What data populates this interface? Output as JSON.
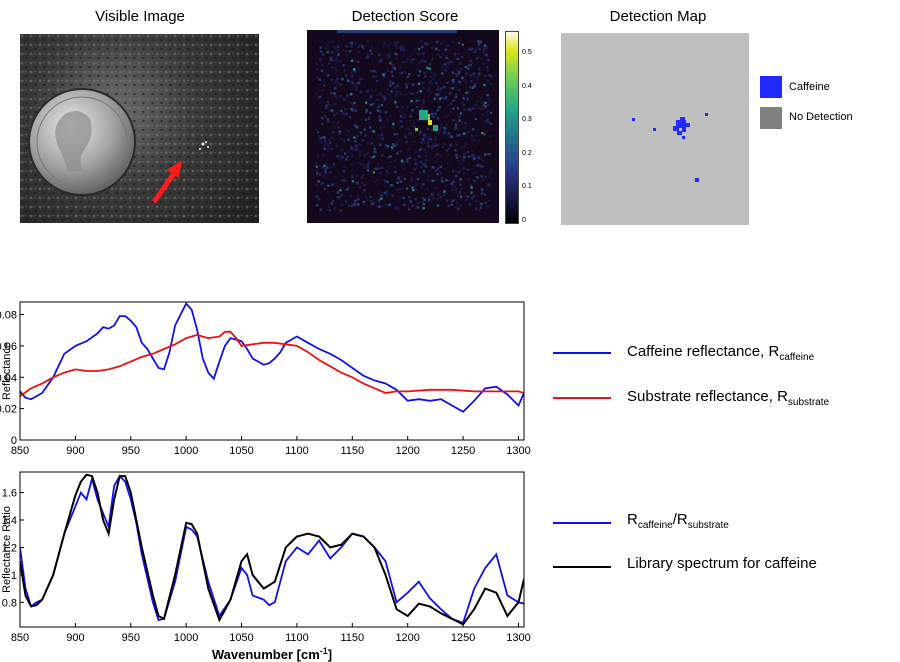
{
  "panels": {
    "visible_title": "Visible Image",
    "score_title": "Detection Score",
    "map_title": "Detection Map"
  },
  "score_colorbar": {
    "ticks": [
      "0.5",
      "0.4",
      "0.3",
      "0.2",
      "0.1",
      "0"
    ],
    "tick_values": [
      0.5,
      0.4,
      0.3,
      0.2,
      0.1,
      0
    ],
    "range": [
      0,
      0.57
    ]
  },
  "map_legend": {
    "caffeine_label": "Caffeine",
    "caffeine_color": "#1f2bff",
    "nodetect_label": "No Detection",
    "nodetect_color": "#808080"
  },
  "colors": {
    "caffeine": "#1010ee",
    "substrate": "#ee1010",
    "ratio": "#1010ee",
    "library": "#000000"
  },
  "chart_data": [
    {
      "type": "line",
      "ylabel": "Reflectance",
      "xlabel": "",
      "xlim": [
        850,
        1305
      ],
      "ylim": [
        0,
        0.088
      ],
      "xticks": [
        850,
        900,
        950,
        1000,
        1050,
        1100,
        1150,
        1200,
        1250,
        1300
      ],
      "yticks": [
        0,
        0.02,
        0.04,
        0.06,
        0.08
      ],
      "ytick_labels": [
        "0",
        "0.02",
        "0.04",
        "0.06",
        "0.08"
      ],
      "series": [
        {
          "name": "Caffeine reflectance, R",
          "subscript": "caffeine",
          "x": [
            850,
            855,
            860,
            870,
            880,
            890,
            900,
            910,
            920,
            925,
            930,
            935,
            940,
            945,
            950,
            955,
            960,
            965,
            970,
            975,
            980,
            985,
            990,
            995,
            1000,
            1005,
            1010,
            1015,
            1020,
            1025,
            1030,
            1035,
            1040,
            1045,
            1050,
            1055,
            1060,
            1065,
            1070,
            1075,
            1080,
            1085,
            1090,
            1095,
            1100,
            1110,
            1120,
            1130,
            1140,
            1150,
            1160,
            1170,
            1180,
            1190,
            1200,
            1210,
            1220,
            1230,
            1240,
            1250,
            1260,
            1270,
            1280,
            1290,
            1300,
            1305
          ],
          "y": [
            0.031,
            0.027,
            0.026,
            0.03,
            0.04,
            0.055,
            0.06,
            0.063,
            0.068,
            0.072,
            0.071,
            0.073,
            0.079,
            0.079,
            0.076,
            0.072,
            0.062,
            0.058,
            0.052,
            0.046,
            0.045,
            0.056,
            0.073,
            0.08,
            0.087,
            0.083,
            0.07,
            0.052,
            0.043,
            0.039,
            0.05,
            0.06,
            0.065,
            0.064,
            0.063,
            0.058,
            0.052,
            0.05,
            0.048,
            0.049,
            0.052,
            0.056,
            0.062,
            0.064,
            0.066,
            0.062,
            0.058,
            0.055,
            0.051,
            0.046,
            0.041,
            0.038,
            0.036,
            0.032,
            0.025,
            0.026,
            0.025,
            0.026,
            0.022,
            0.018,
            0.025,
            0.033,
            0.034,
            0.029,
            0.022,
            0.03
          ]
        },
        {
          "name": "Substrate reflectance, R",
          "subscript": "substrate",
          "x": [
            850,
            860,
            870,
            880,
            890,
            900,
            910,
            920,
            930,
            940,
            950,
            960,
            970,
            980,
            990,
            1000,
            1010,
            1020,
            1030,
            1035,
            1040,
            1045,
            1050,
            1060,
            1070,
            1080,
            1090,
            1100,
            1110,
            1120,
            1130,
            1140,
            1150,
            1160,
            1170,
            1180,
            1190,
            1200,
            1220,
            1240,
            1260,
            1280,
            1300,
            1305
          ],
          "y": [
            0.028,
            0.033,
            0.036,
            0.04,
            0.043,
            0.045,
            0.044,
            0.044,
            0.045,
            0.047,
            0.05,
            0.053,
            0.055,
            0.058,
            0.061,
            0.065,
            0.067,
            0.065,
            0.066,
            0.069,
            0.069,
            0.065,
            0.06,
            0.061,
            0.062,
            0.062,
            0.061,
            0.06,
            0.056,
            0.051,
            0.047,
            0.043,
            0.04,
            0.036,
            0.033,
            0.03,
            0.031,
            0.031,
            0.032,
            0.032,
            0.031,
            0.031,
            0.031,
            0.03
          ]
        }
      ]
    },
    {
      "type": "line",
      "ylabel": "Reflectance Ratio",
      "xlabel": "Wavenumber [cm",
      "xlabel_sup": "-1",
      "xlabel_end": "]",
      "xlim": [
        850,
        1305
      ],
      "ylim": [
        0.62,
        1.75
      ],
      "xticks": [
        850,
        900,
        950,
        1000,
        1050,
        1100,
        1150,
        1200,
        1250,
        1300
      ],
      "yticks": [
        0.8,
        1.0,
        1.2,
        1.4,
        1.6
      ],
      "ytick_labels": [
        "0.8",
        "1",
        "1.2",
        "1.4",
        "1.6"
      ],
      "series": [
        {
          "name": "R",
          "name_sub": "caffeine",
          "name_mid": "/R",
          "name_sub2": "substrate",
          "x": [
            850,
            855,
            860,
            865,
            870,
            880,
            890,
            900,
            905,
            910,
            915,
            920,
            925,
            930,
            935,
            940,
            945,
            950,
            955,
            960,
            970,
            975,
            980,
            990,
            1000,
            1005,
            1010,
            1020,
            1030,
            1040,
            1050,
            1055,
            1060,
            1070,
            1075,
            1080,
            1090,
            1100,
            1110,
            1120,
            1130,
            1140,
            1150,
            1160,
            1170,
            1180,
            1190,
            1200,
            1210,
            1220,
            1230,
            1240,
            1250,
            1260,
            1270,
            1280,
            1290,
            1300,
            1305
          ],
          "y": [
            1.2,
            0.9,
            0.77,
            0.8,
            0.82,
            1.0,
            1.3,
            1.5,
            1.6,
            1.55,
            1.7,
            1.55,
            1.45,
            1.35,
            1.65,
            1.72,
            1.68,
            1.55,
            1.38,
            1.15,
            0.8,
            0.67,
            0.68,
            0.95,
            1.35,
            1.33,
            1.28,
            0.95,
            0.7,
            0.82,
            1.05,
            1.0,
            0.85,
            0.82,
            0.78,
            0.8,
            1.1,
            1.2,
            1.15,
            1.25,
            1.12,
            1.2,
            1.3,
            1.28,
            1.2,
            1.1,
            0.8,
            0.87,
            0.95,
            0.83,
            0.75,
            0.68,
            0.65,
            0.9,
            1.05,
            1.15,
            0.85,
            0.8,
            0.79
          ]
        },
        {
          "name": "Library spectrum for caffeine",
          "x": [
            850,
            855,
            860,
            865,
            870,
            880,
            890,
            900,
            905,
            910,
            915,
            920,
            925,
            930,
            935,
            940,
            945,
            950,
            955,
            960,
            970,
            975,
            980,
            990,
            1000,
            1005,
            1010,
            1020,
            1030,
            1040,
            1050,
            1055,
            1060,
            1070,
            1080,
            1090,
            1100,
            1110,
            1120,
            1130,
            1140,
            1150,
            1160,
            1170,
            1180,
            1190,
            1200,
            1210,
            1220,
            1230,
            1240,
            1250,
            1260,
            1270,
            1280,
            1290,
            1300,
            1305
          ],
          "y": [
            1.1,
            0.85,
            0.77,
            0.78,
            0.82,
            1.0,
            1.3,
            1.58,
            1.68,
            1.73,
            1.72,
            1.6,
            1.4,
            1.3,
            1.55,
            1.72,
            1.72,
            1.6,
            1.4,
            1.2,
            0.85,
            0.7,
            0.68,
            1.0,
            1.38,
            1.37,
            1.3,
            0.9,
            0.67,
            0.82,
            1.1,
            1.15,
            1.0,
            0.9,
            0.95,
            1.2,
            1.28,
            1.3,
            1.28,
            1.2,
            1.22,
            1.3,
            1.28,
            1.2,
            1.0,
            0.75,
            0.7,
            0.79,
            0.77,
            0.72,
            0.68,
            0.64,
            0.75,
            0.9,
            0.87,
            0.7,
            0.8,
            0.97
          ]
        }
      ]
    }
  ]
}
